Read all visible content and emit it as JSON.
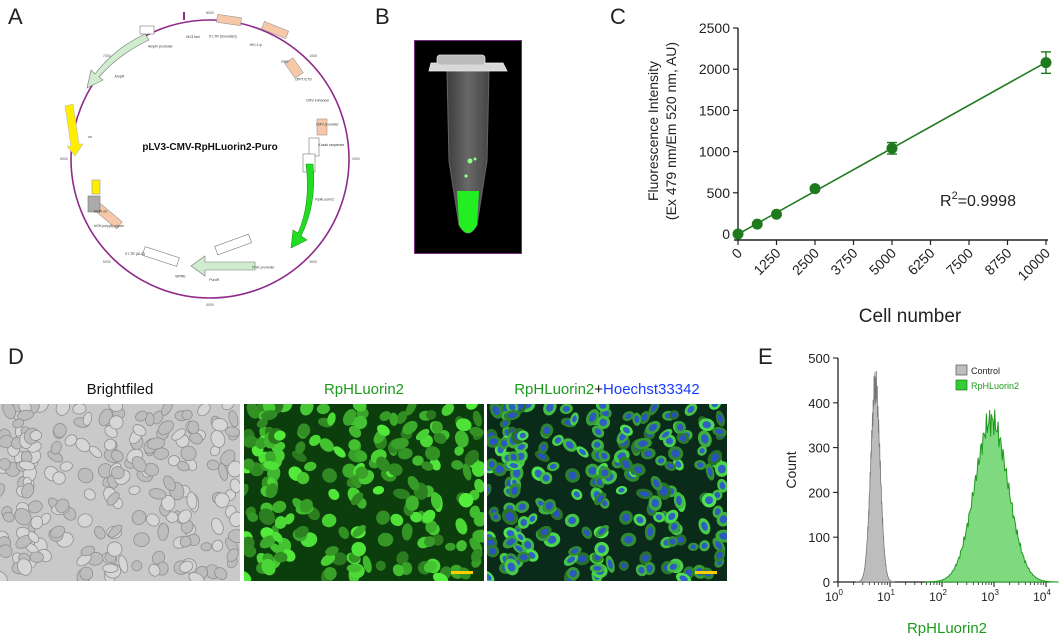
{
  "panels": {
    "A": {
      "letter": "A",
      "plasmid_name": "pLV3-CMV-RpHLuorin2-Puro",
      "features": [
        "M13 fwd",
        "5' LTR (truncated)",
        "HIV-1 ψ",
        "RRE",
        "cPPT/CTS",
        "CMV enhancer",
        "CMV promoter",
        "Kozak sequence",
        "RpHLuorin2",
        "PGK promoter",
        "PuroR",
        "WPRE",
        "3' LTR (ΔU3)",
        "bGH poly(A) signal",
        "SV40 ori",
        "AmpR",
        "ori",
        "AmpR promoter"
      ],
      "ticks": [
        "8000",
        "1000",
        "2000",
        "3000",
        "4000",
        "5000",
        "6000",
        "7000"
      ]
    },
    "B": {
      "letter": "B"
    },
    "C": {
      "letter": "C",
      "r2_text": "R",
      "r2_sup": "2",
      "r2_value": "=0.9998"
    },
    "D": {
      "letter": "D",
      "titles": {
        "brightfield": "Brightfiled",
        "rphluorin": "RpHLuorin2",
        "merge_green": "RpHLuorin2",
        "merge_plus": "+",
        "merge_blue": "Hoechst33342"
      }
    },
    "E": {
      "letter": "E",
      "legend": [
        "Control",
        "RpHLuorin2"
      ],
      "ylabel": "Count",
      "xlabel": "RpHLuorin2",
      "yticks": [
        "0",
        "100",
        "200",
        "300",
        "400",
        "500"
      ],
      "xticks": [
        "10",
        "10",
        "10",
        "10",
        "10"
      ],
      "xtick_exps": [
        "0",
        "1",
        "2",
        "3",
        "4"
      ]
    }
  },
  "colors": {
    "green_line": "#1f7a1f",
    "plasmid_circle": "#8e2a8a",
    "tube_border": "#7a2a7a",
    "fluor_green": "#22dd22",
    "control_gray": "#bdbdbd",
    "rphluorin_fill": "#7fd97f",
    "hoechst_blue": "#1a3cff"
  },
  "chart_data": {
    "type": "scatter",
    "x": [
      0,
      625,
      1250,
      2500,
      5000,
      10000
    ],
    "y": [
      0,
      120,
      240,
      550,
      1040,
      2080
    ],
    "yerr": [
      5,
      10,
      15,
      25,
      70,
      130
    ],
    "xlabel": "Cell number",
    "ylabel": [
      "Fluorescence Intensity",
      "(Ex 479 nm/Em 520 nm, AU)"
    ],
    "xticks": [
      "0",
      "1250",
      "2500",
      "3750",
      "5000",
      "6250",
      "7500",
      "8750",
      "10000"
    ],
    "yticks": [
      "0",
      "500",
      "1000",
      "1500",
      "2000",
      "2500"
    ],
    "xlim": [
      0,
      10000
    ],
    "ylim": [
      0,
      2500
    ],
    "fit": "linear",
    "r2": 0.9998,
    "grid": false
  }
}
